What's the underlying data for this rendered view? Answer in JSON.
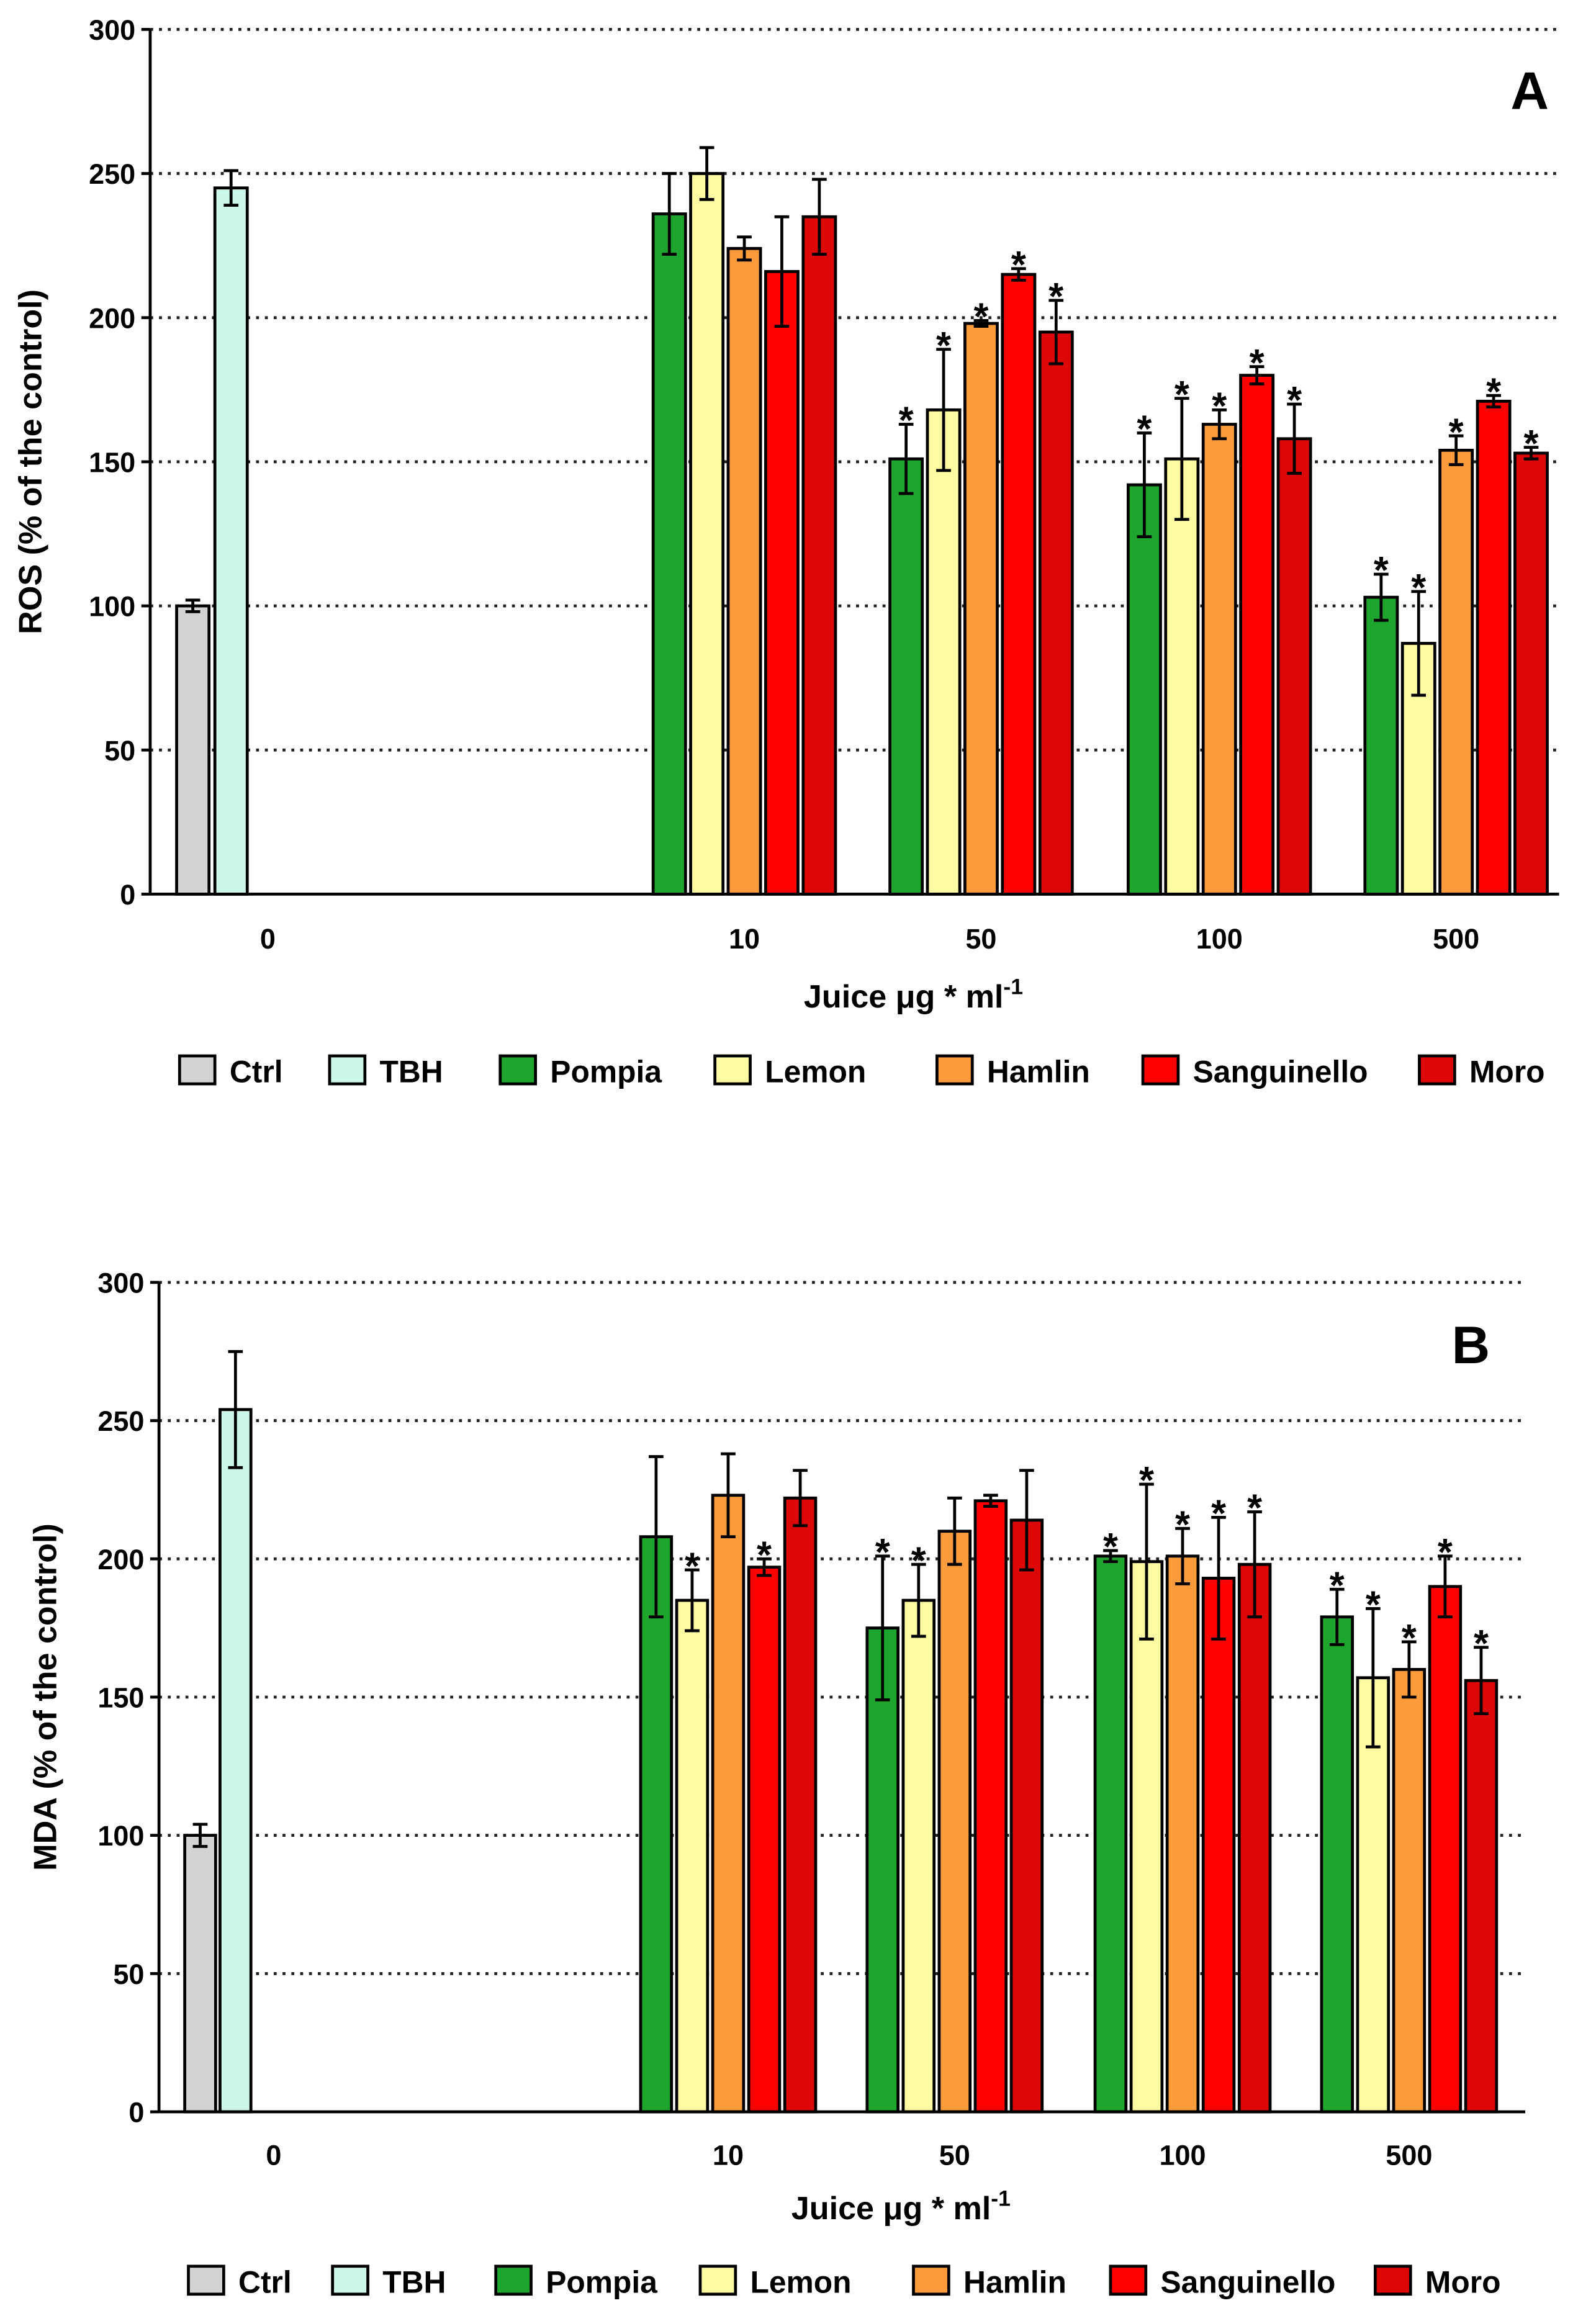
{
  "chart_data": [
    {
      "type": "bar",
      "panel_label": "A",
      "ylabel": "ROS (% of the control)",
      "xlabel": "Juice μg * ml",
      "xlabel_sup": "-1",
      "ylim": [
        0,
        300
      ],
      "yticks": [
        0,
        50,
        100,
        150,
        200,
        250,
        300
      ],
      "grid": "horizontal dotted",
      "legend_placement": "bottom",
      "controls": {
        "category": "0",
        "bars": [
          {
            "name": "Ctrl",
            "value": 100,
            "err": 2
          },
          {
            "name": "TBH",
            "value": 245,
            "err": 6
          }
        ]
      },
      "categories": [
        "10",
        "50",
        "100",
        "500"
      ],
      "series": [
        {
          "name": "Pompia",
          "color": "#1ea52e",
          "values": [
            236,
            151,
            142,
            103
          ],
          "err": [
            14,
            12,
            18,
            8
          ],
          "sig": [
            false,
            true,
            true,
            true
          ]
        },
        {
          "name": "Lemon",
          "color": "#fffba3",
          "values": [
            250,
            168,
            151,
            87
          ],
          "err": [
            9,
            21,
            21,
            18
          ],
          "sig": [
            false,
            true,
            true,
            true
          ]
        },
        {
          "name": "Hamlin",
          "color": "#fb9b3b",
          "values": [
            224,
            198,
            163,
            154
          ],
          "err": [
            4,
            1,
            5,
            5
          ],
          "sig": [
            false,
            true,
            true,
            true
          ]
        },
        {
          "name": "Sanguinello",
          "color": "#ff0000",
          "values": [
            216,
            215,
            180,
            171
          ],
          "err": [
            19,
            2,
            3,
            2
          ],
          "sig": [
            false,
            true,
            true,
            true
          ]
        },
        {
          "name": "Moro",
          "color": "#dd0707",
          "values": [
            235,
            195,
            158,
            153
          ],
          "err": [
            13,
            11,
            12,
            2
          ],
          "sig": [
            false,
            true,
            true,
            true
          ]
        }
      ]
    },
    {
      "type": "bar",
      "panel_label": "B",
      "ylabel": "MDA (% of the control)",
      "xlabel": "Juice μg * ml",
      "xlabel_sup": "-1",
      "ylim": [
        0,
        300
      ],
      "yticks": [
        0,
        50,
        100,
        150,
        200,
        250,
        300
      ],
      "grid": "horizontal dotted",
      "legend_placement": "bottom",
      "controls": {
        "category": "0",
        "bars": [
          {
            "name": "Ctrl",
            "value": 100,
            "err": 4
          },
          {
            "name": "TBH",
            "value": 254,
            "err": 21
          }
        ]
      },
      "categories": [
        "10",
        "50",
        "100",
        "500"
      ],
      "series": [
        {
          "name": "Pompia",
          "color": "#1ea52e",
          "values": [
            208,
            175,
            201,
            179
          ],
          "err": [
            29,
            26,
            2,
            10
          ],
          "sig": [
            false,
            true,
            true,
            true
          ]
        },
        {
          "name": "Lemon",
          "color": "#fffba3",
          "values": [
            185,
            185,
            199,
            157
          ],
          "err": [
            11,
            13,
            28,
            25
          ],
          "sig": [
            true,
            true,
            true,
            true
          ]
        },
        {
          "name": "Hamlin",
          "color": "#fb9b3b",
          "values": [
            223,
            210,
            201,
            160
          ],
          "err": [
            15,
            12,
            10,
            10
          ],
          "sig": [
            false,
            false,
            true,
            true
          ]
        },
        {
          "name": "Sanguinello",
          "color": "#ff0000",
          "values": [
            197,
            221,
            193,
            190
          ],
          "err": [
            3,
            2,
            22,
            11
          ],
          "sig": [
            true,
            false,
            true,
            true
          ]
        },
        {
          "name": "Moro",
          "color": "#dd0707",
          "values": [
            222,
            214,
            198,
            156
          ],
          "err": [
            10,
            18,
            19,
            12
          ],
          "sig": [
            false,
            false,
            true,
            true
          ]
        }
      ]
    }
  ],
  "legend": [
    {
      "name": "Ctrl",
      "color": "#d3d3d3"
    },
    {
      "name": "TBH",
      "color": "#cdf7ea"
    },
    {
      "name": "Pompia",
      "color": "#1ea52e"
    },
    {
      "name": "Lemon",
      "color": "#fffba3"
    },
    {
      "name": "Hamlin",
      "color": "#fb9b3b"
    },
    {
      "name": "Sanguinello",
      "color": "#ff0000"
    },
    {
      "name": "Moro",
      "color": "#dd0707"
    }
  ],
  "sig_marker": "*"
}
